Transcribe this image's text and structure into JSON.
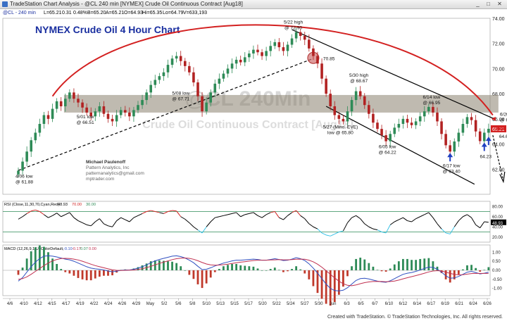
{
  "window": {
    "title": "TradeStation Chart Analysis - @CL 240 min [NYMEX] Crude Oil Continuous Contract [Aug18]",
    "minimize_label": "_",
    "maximize_label": "□",
    "close_label": "✕"
  },
  "infobar": {
    "symbol": "@CL - 240 min",
    "last": "L=65.21",
    "change": "0.31",
    "change_pct": "0.48%",
    "bid": "B=65.20",
    "ask": "A=65.21",
    "open": "O=64.93",
    "high": "Hi=65.35",
    "low": "Lo=64.79",
    "volume": "V=633,193"
  },
  "footer": {
    "credit": "Created with TradeStation. © TradeStation Technologies, Inc. All rights reserved."
  },
  "colors": {
    "up_candle": "#2e8b57",
    "down_candle": "#b22222",
    "arc": "#d32020",
    "channel": "#000000",
    "zone": "#8a8270",
    "title": "#1a2fa0",
    "rsi_line": "#000000",
    "rsi_overbought": "#d32020",
    "rsi_oversold": "#39c2e6",
    "macd_line": "#3050c0",
    "signal_line": "#c03050",
    "hist_up": "#2e8b57",
    "hist_down": "#c0392b"
  },
  "chart_data": [
    {
      "type": "candlestick",
      "title": "NYMEX Crude Oil 4 Hour Chart",
      "watermark_symbol": "@CL 240Min",
      "watermark_name": "Crude Oil Continuous Contract [Aug18]",
      "ylim": [
        60,
        74
      ],
      "y_ticks": [
        62,
        64,
        66,
        68,
        70,
        72,
        74
      ],
      "x_labels": [
        "4/6",
        "4/10",
        "4/12",
        "4/15",
        "4/17",
        "4/19",
        "4/22",
        "4/24",
        "4/26",
        "4/29",
        "May",
        "5/2",
        "5/6",
        "5/8",
        "5/10",
        "5/13",
        "5/15",
        "5/17",
        "5/20",
        "5/22",
        "5/24",
        "5/27",
        "5/30",
        "Jun",
        "6/3",
        "6/5",
        "6/7",
        "6/10",
        "6/12",
        "6/14",
        "6/17",
        "6/19",
        "6/21",
        "6/24",
        "6/26"
      ],
      "last_price": "65.21",
      "last_label": "Last",
      "projection_target": "64.65",
      "closes": [
        61.88,
        62.6,
        63.4,
        64.3,
        64.9,
        65.6,
        66.3,
        66.0,
        66.8,
        67.4,
        67.0,
        67.6,
        68.1,
        67.6,
        67.3,
        66.9,
        66.5,
        66.2,
        66.6,
        67.0,
        66.4,
        66.0,
        65.8,
        66.3,
        66.7,
        66.5,
        66.2,
        66.7,
        67.1,
        67.5,
        68.1,
        68.7,
        69.1,
        69.4,
        69.7,
        70.3,
        70.8,
        71.0,
        70.6,
        70.2,
        69.7,
        68.9,
        67.8,
        66.6,
        67.3,
        68.1,
        68.8,
        69.2,
        69.6,
        70.0,
        70.4,
        70.7,
        70.5,
        70.9,
        71.2,
        71.5,
        71.3,
        71.0,
        71.4,
        71.8,
        72.1,
        71.7,
        71.4,
        71.9,
        72.4,
        72.9,
        72.6,
        72.3,
        71.6,
        71.0,
        70.4,
        69.2,
        68.0,
        67.0,
        66.3,
        66.0,
        65.8,
        66.6,
        67.5,
        68.2,
        67.8,
        67.1,
        66.4,
        65.7,
        65.2,
        64.7,
        64.22,
        64.8,
        65.3,
        65.6,
        66.0,
        65.7,
        65.5,
        65.8,
        66.2,
        66.6,
        66.95,
        66.5,
        65.8,
        64.8,
        63.9,
        63.4,
        64.2,
        64.9,
        65.6,
        66.14,
        65.9,
        65.0,
        64.23,
        64.9,
        65.21
      ],
      "annotations": [
        {
          "id": "a406",
          "text": [
            "4/06 low",
            "@ 61.88"
          ]
        },
        {
          "id": "a501",
          "text": [
            "5/01 low",
            "@ 66.51"
          ]
        },
        {
          "id": "a508",
          "text": [
            "5/08 low",
            "@ 67.71"
          ]
        },
        {
          "id": "a522",
          "text": [
            "5/22 high",
            "@ 72.90"
          ]
        },
        {
          "id": "a7085",
          "text": [
            "70.85"
          ]
        },
        {
          "id": "a530",
          "text": [
            "5/30 high",
            "@ 68.67"
          ]
        },
        {
          "id": "a527",
          "text": [
            "5/27 (Mins. EVE)",
            "low @ 65.80"
          ]
        },
        {
          "id": "a605",
          "text": [
            "6/05 low",
            "@ 64.22"
          ]
        },
        {
          "id": "a614",
          "text": [
            "6/14 low",
            "@ 66.95"
          ]
        },
        {
          "id": "a620",
          "text": [
            "6/20 high",
            "@ 66.14"
          ]
        },
        {
          "id": "a617",
          "text": [
            "6/17 low",
            "@ 63.40"
          ]
        },
        {
          "id": "a6423",
          "text": [
            "64.23"
          ]
        }
      ],
      "credit_lines": [
        "Michael Paulenoff",
        "Pattern Analytics, Inc",
        "patternanalytics@gmail.com",
        "mptrader.com"
      ]
    },
    {
      "type": "line",
      "name": "RSI",
      "legend": "RSI (Close,11,30,70,Cyan,Red)",
      "value": "48.93",
      "legend_value": "48.93",
      "overbought": 70,
      "oversold": 30,
      "legend_ob": "70.00",
      "legend_os": "30.00",
      "ylim": [
        10,
        90
      ],
      "y_ticks": [
        20,
        40,
        60,
        80
      ],
      "values": [
        55,
        60,
        66,
        71,
        73,
        70,
        64,
        58,
        62,
        67,
        60,
        64,
        68,
        58,
        52,
        48,
        44,
        42,
        50,
        56,
        46,
        42,
        40,
        52,
        58,
        54,
        50,
        58,
        62,
        66,
        70,
        72,
        70,
        68,
        66,
        70,
        72,
        71,
        60,
        55,
        48,
        40,
        34,
        28,
        40,
        50,
        58,
        60,
        62,
        64,
        66,
        68,
        60,
        64,
        66,
        68,
        62,
        58,
        64,
        68,
        70,
        58,
        54,
        62,
        68,
        72,
        62,
        56,
        46,
        40,
        36,
        28,
        24,
        22,
        26,
        30,
        32,
        48,
        58,
        62,
        56,
        46,
        40,
        36,
        34,
        30,
        28,
        44,
        50,
        54,
        58,
        52,
        50,
        56,
        60,
        64,
        68,
        58,
        46,
        36,
        28,
        26,
        40,
        52,
        60,
        64,
        58,
        44,
        38,
        50,
        49
      ]
    },
    {
      "type": "bar",
      "name": "MACD",
      "legend": "MACD (12,26,9,1,UpColorDefault,",
      "legend_values": [
        "-0.10",
        "-0.17",
        "0.07",
        "0.00"
      ],
      "ylim": [
        -1.4,
        1.4
      ],
      "y_ticks": [
        1.0,
        0.5,
        0.0,
        -0.5,
        -1.0
      ],
      "macd": [
        -0.6,
        -0.4,
        -0.1,
        0.2,
        0.45,
        0.65,
        0.78,
        0.8,
        0.78,
        0.74,
        0.68,
        0.62,
        0.58,
        0.5,
        0.4,
        0.3,
        0.2,
        0.12,
        0.08,
        0.06,
        0.02,
        -0.04,
        -0.08,
        -0.05,
        0.0,
        0.02,
        0.02,
        0.06,
        0.12,
        0.2,
        0.3,
        0.42,
        0.52,
        0.6,
        0.66,
        0.72,
        0.78,
        0.8,
        0.76,
        0.68,
        0.56,
        0.42,
        0.22,
        0.04,
        0.06,
        0.14,
        0.24,
        0.32,
        0.4,
        0.46,
        0.52,
        0.56,
        0.56,
        0.58,
        0.6,
        0.62,
        0.6,
        0.56,
        0.56,
        0.6,
        0.64,
        0.6,
        0.54,
        0.56,
        0.62,
        0.7,
        0.64,
        0.54,
        0.36,
        0.12,
        -0.16,
        -0.46,
        -0.76,
        -1.0,
        -1.12,
        -1.14,
        -1.1,
        -0.96,
        -0.76,
        -0.56,
        -0.46,
        -0.44,
        -0.48,
        -0.54,
        -0.6,
        -0.64,
        -0.66,
        -0.58,
        -0.46,
        -0.34,
        -0.22,
        -0.16,
        -0.12,
        -0.06,
        0.02,
        0.1,
        0.18,
        0.16,
        0.06,
        -0.1,
        -0.3,
        -0.44,
        -0.42,
        -0.34,
        -0.22,
        -0.1,
        -0.06,
        -0.12,
        -0.2,
        -0.16,
        -0.1
      ],
      "signal": [
        -0.5,
        -0.46,
        -0.36,
        -0.22,
        -0.06,
        0.1,
        0.26,
        0.4,
        0.52,
        0.6,
        0.65,
        0.66,
        0.65,
        0.62,
        0.57,
        0.5,
        0.42,
        0.34,
        0.26,
        0.2,
        0.14,
        0.08,
        0.03,
        0.0,
        -0.01,
        0.0,
        0.01,
        0.02,
        0.05,
        0.09,
        0.15,
        0.22,
        0.3,
        0.38,
        0.45,
        0.52,
        0.59,
        0.64,
        0.67,
        0.68,
        0.66,
        0.61,
        0.53,
        0.43,
        0.35,
        0.3,
        0.28,
        0.29,
        0.31,
        0.34,
        0.38,
        0.42,
        0.45,
        0.48,
        0.51,
        0.54,
        0.56,
        0.56,
        0.56,
        0.57,
        0.58,
        0.59,
        0.58,
        0.58,
        0.59,
        0.61,
        0.62,
        0.61,
        0.56,
        0.47,
        0.34,
        0.17,
        -0.02,
        -0.22,
        -0.42,
        -0.6,
        -0.74,
        -0.83,
        -0.85,
        -0.81,
        -0.74,
        -0.68,
        -0.64,
        -0.62,
        -0.61,
        -0.62,
        -0.63,
        -0.62,
        -0.59,
        -0.54,
        -0.47,
        -0.41,
        -0.35,
        -0.29,
        -0.23,
        -0.16,
        -0.09,
        -0.04,
        -0.02,
        -0.04,
        -0.1,
        -0.17,
        -0.22,
        -0.25,
        -0.24,
        -0.21,
        -0.18,
        -0.17,
        -0.17,
        -0.17,
        -0.17
      ],
      "histogram_note": "MACD minus signal"
    }
  ]
}
